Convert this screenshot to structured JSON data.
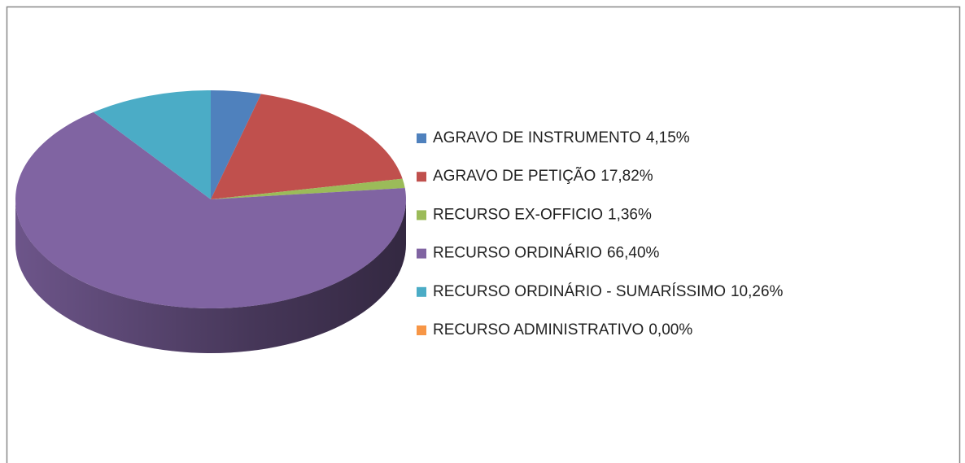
{
  "chart_data": {
    "type": "pie3d",
    "categories": [
      "AGRAVO DE INSTRUMENTO",
      "AGRAVO DE PETIÇÃO",
      "RECURSO EX-OFFICIO",
      "RECURSO ORDINÁRIO",
      "RECURSO ORDINÁRIO - SUMARÍSSIMO",
      "RECURSO ADMINISTRATIVO"
    ],
    "values": [
      4.15,
      17.82,
      1.36,
      66.4,
      10.26,
      0.0
    ],
    "value_labels": [
      "4,15%",
      "17,82%",
      "1,36%",
      "66,40%",
      "10,26%",
      "0,00%"
    ],
    "colors": [
      "#4f81bd",
      "#c0504d",
      "#9bbb59",
      "#8064a2",
      "#4bacc6",
      "#f79646"
    ],
    "legend": "right"
  }
}
